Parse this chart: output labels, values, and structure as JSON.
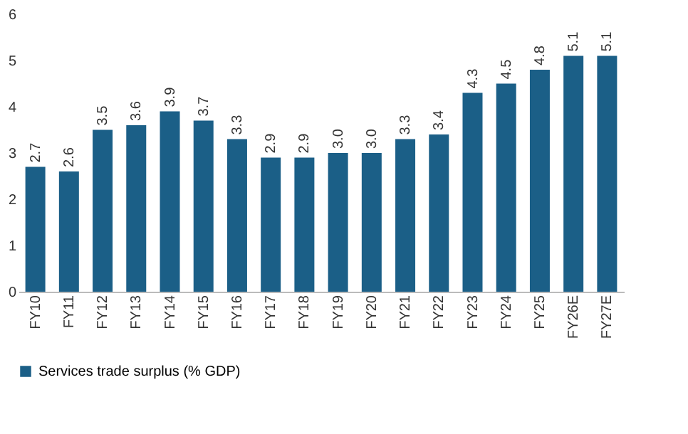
{
  "chart_data": {
    "type": "bar",
    "categories": [
      "FY10",
      "FY11",
      "FY12",
      "FY13",
      "FY14",
      "FY15",
      "FY16",
      "FY17",
      "FY18",
      "FY19",
      "FY20",
      "FY21",
      "FY22",
      "FY23",
      "FY24",
      "FY25",
      "FY26E",
      "FY27E"
    ],
    "series": [
      {
        "name": "Services trade surplus (% GDP)",
        "color": "#1b5f87",
        "values": [
          2.7,
          2.6,
          3.5,
          3.6,
          3.9,
          3.7,
          3.3,
          2.9,
          2.9,
          3.0,
          3.0,
          3.3,
          3.4,
          4.3,
          4.5,
          4.8,
          5.1,
          5.1
        ],
        "value_labels": [
          "2.7",
          "2.6",
          "3.5",
          "3.6",
          "3.9",
          "3.7",
          "3.3",
          "2.9",
          "2.9",
          "3.0",
          "3.0",
          "3.3",
          "3.4",
          "4.3",
          "4.5",
          "4.8",
          "5.1",
          "5.1"
        ]
      }
    ],
    "ylim": [
      0,
      6
    ],
    "yticks": [
      0,
      1,
      2,
      3,
      4,
      5,
      6
    ],
    "grid": false,
    "legend": "bottom"
  }
}
